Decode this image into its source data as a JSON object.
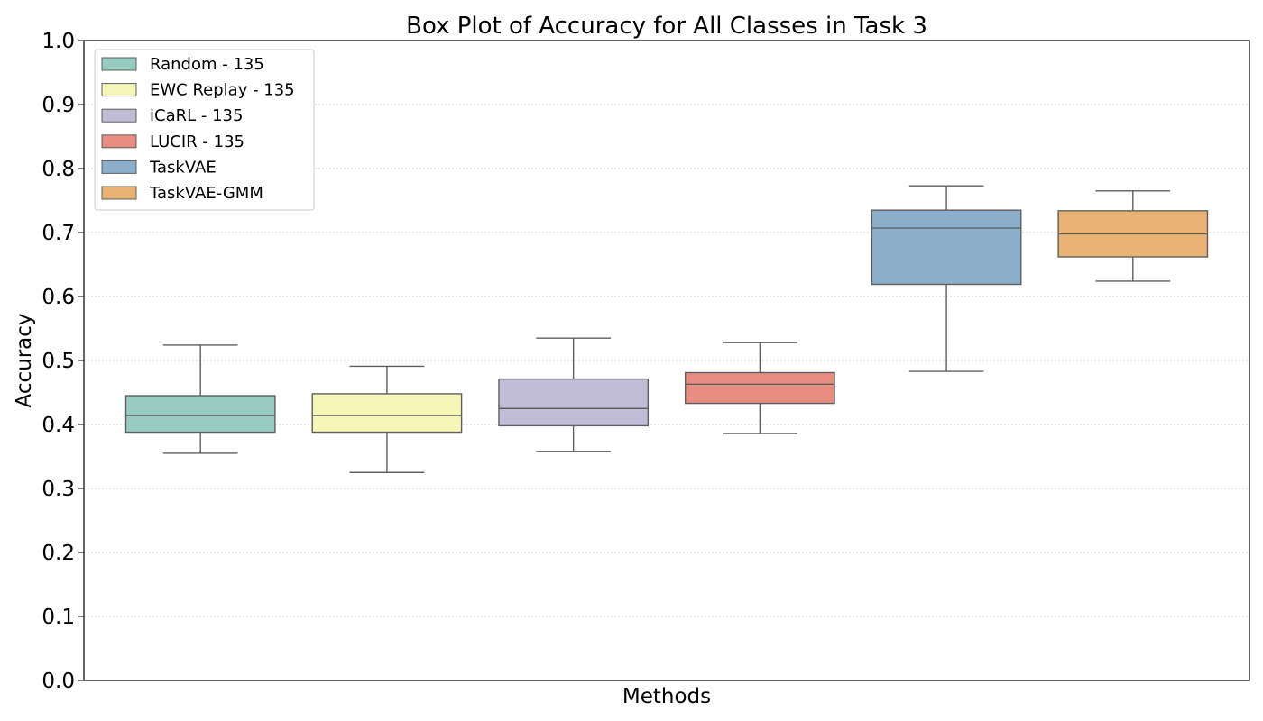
{
  "chart_data": {
    "type": "box",
    "title": "Box Plot of Accuracy for All Classes in Task 3",
    "xlabel": "Methods",
    "ylabel": "Accuracy",
    "ylim": [
      0,
      1
    ],
    "yticks": [
      "0.0",
      "0.1",
      "0.2",
      "0.3",
      "0.4",
      "0.5",
      "0.6",
      "0.7",
      "0.8",
      "0.9",
      "1.0"
    ],
    "grid": "horizontal dotted",
    "legend_position": "top-left",
    "series": [
      {
        "name": "Random - 135",
        "color": "#96cbbf",
        "whisker_low": 0.355,
        "q1": 0.388,
        "median": 0.414,
        "q3": 0.445,
        "whisker_high": 0.524
      },
      {
        "name": "EWC Replay - 135",
        "color": "#f7f6b9",
        "whisker_low": 0.325,
        "q1": 0.388,
        "median": 0.414,
        "q3": 0.448,
        "whisker_high": 0.491
      },
      {
        "name": "iCaRL - 135",
        "color": "#c1bcd6",
        "whisker_low": 0.358,
        "q1": 0.398,
        "median": 0.425,
        "q3": 0.471,
        "whisker_high": 0.535
      },
      {
        "name": "LUCIR - 135",
        "color": "#e88d82",
        "whisker_low": 0.386,
        "q1": 0.433,
        "median": 0.463,
        "q3": 0.481,
        "whisker_high": 0.528
      },
      {
        "name": "TaskVAE",
        "color": "#8bafca",
        "whisker_low": 0.483,
        "q1": 0.619,
        "median": 0.707,
        "q3": 0.735,
        "whisker_high": 0.773
      },
      {
        "name": "TaskVAE-GMM",
        "color": "#ebb373",
        "whisker_low": 0.624,
        "q1": 0.662,
        "median": 0.698,
        "q3": 0.734,
        "whisker_high": 0.765
      }
    ]
  }
}
